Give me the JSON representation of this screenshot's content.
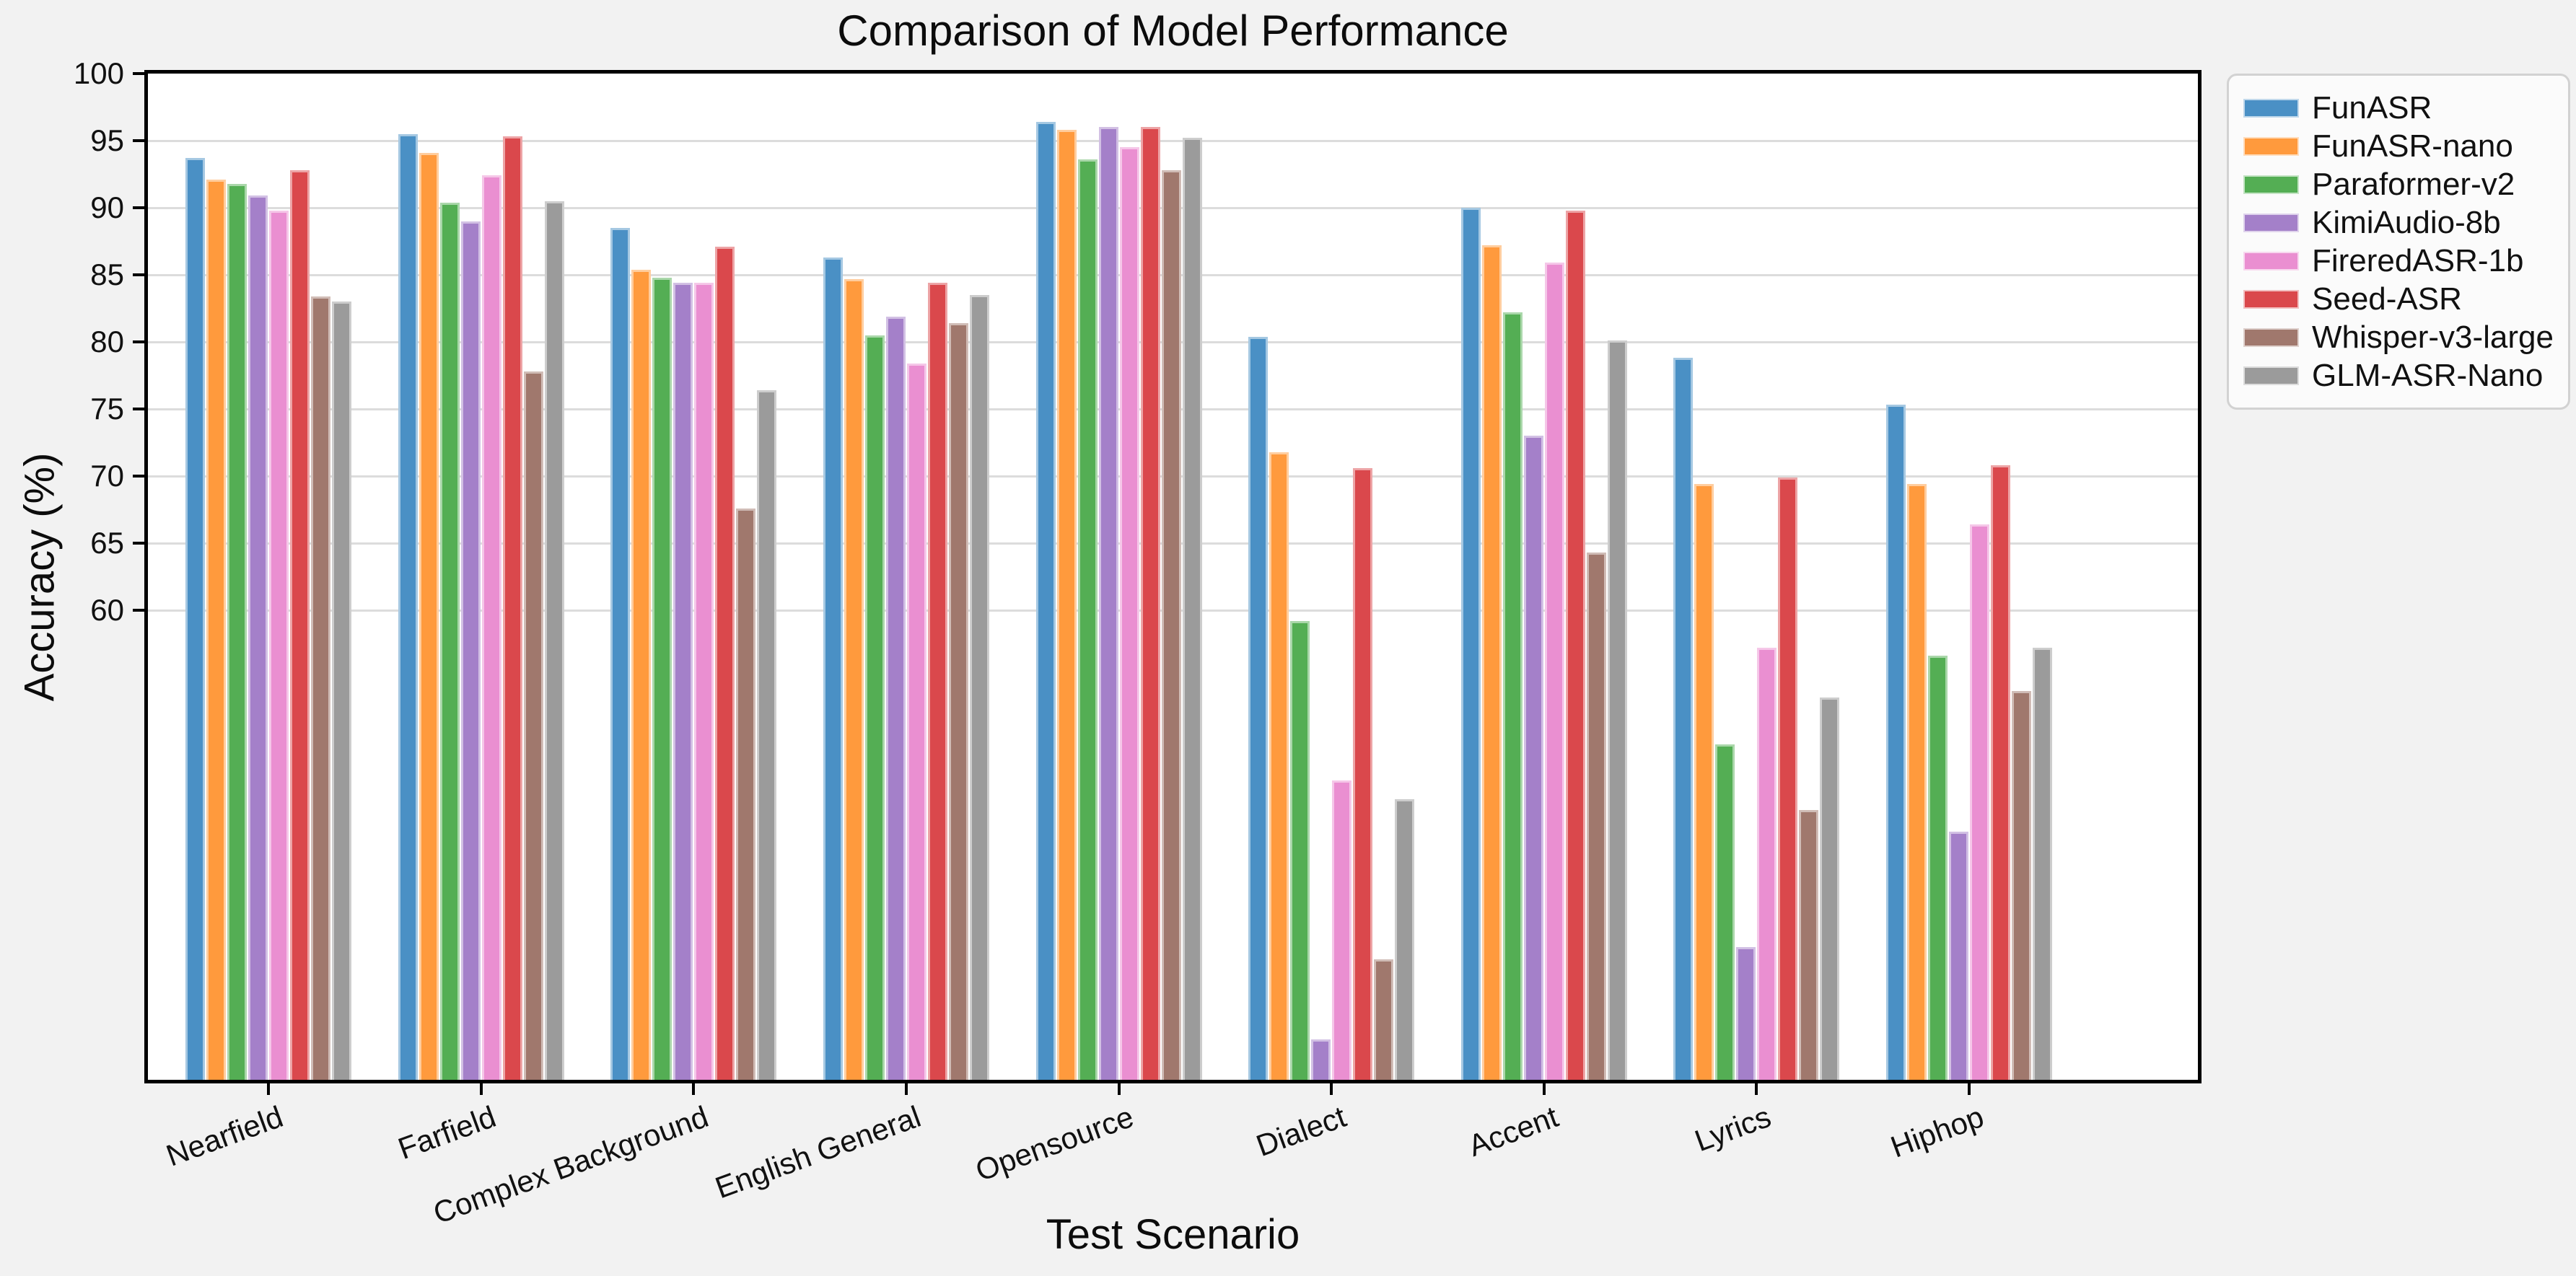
{
  "title": "Comparison of Model Performance",
  "chart_data": {
    "type": "bar",
    "title": "Comparison of Model Performance",
    "xlabel": "Test Scenario",
    "ylabel": "Accuracy (%)",
    "ylim": [
      25,
      100
    ],
    "yticks": [
      60,
      65,
      70,
      75,
      80,
      85,
      90,
      95,
      100
    ],
    "grid": "horizontal",
    "legend_position": "outside-top-right",
    "categories": [
      "Nearfield",
      "Farfield",
      "Complex Background",
      "English General",
      "Opensource",
      "Dialect",
      "Accent",
      "Lyrics",
      "Hiphop"
    ],
    "series": [
      {
        "name": "FunASR",
        "color": "#4a90c5",
        "values": [
          93.7,
          95.5,
          88.5,
          86.3,
          96.4,
          80.4,
          90.0,
          78.8,
          75.3
        ]
      },
      {
        "name": "FunASR-nano",
        "color": "#ff9a3d",
        "values": [
          92.1,
          94.1,
          85.4,
          84.7,
          95.8,
          71.8,
          87.2,
          69.4,
          69.4
        ]
      },
      {
        "name": "Paraformer-v2",
        "color": "#54ae54",
        "values": [
          91.8,
          90.4,
          84.8,
          80.5,
          93.6,
          59.2,
          82.2,
          50.0,
          56.6
        ]
      },
      {
        "name": "KimiAudio-8b",
        "color": "#a480c9",
        "values": [
          90.9,
          89.0,
          84.4,
          81.9,
          96.0,
          28.0,
          73.0,
          34.9,
          43.5
        ]
      },
      {
        "name": "FireredASR-1b",
        "color": "#ea8fd1",
        "values": [
          89.8,
          92.4,
          84.4,
          78.4,
          94.5,
          47.3,
          85.9,
          57.2,
          66.4
        ]
      },
      {
        "name": "Seed-ASR",
        "color": "#da484c",
        "values": [
          92.8,
          95.3,
          87.1,
          84.4,
          96.0,
          70.6,
          89.8,
          69.9,
          70.8
        ]
      },
      {
        "name": "Whisper-v3-large",
        "color": "#a0786d",
        "values": [
          83.4,
          77.8,
          67.6,
          81.4,
          92.8,
          34.0,
          64.3,
          45.1,
          54.0
        ]
      },
      {
        "name": "GLM-ASR-Nano",
        "color": "#9b9b9b",
        "values": [
          83.0,
          90.5,
          76.4,
          83.5,
          95.2,
          45.9,
          80.1,
          53.5,
          57.2
        ]
      }
    ]
  },
  "style_colors": {
    "figure_bg": "#f2f2f2",
    "plot_bg": "#ffffff",
    "gridline": "#dcdcdc",
    "spine": "#000000",
    "legend_bg": "#fbfbfb",
    "legend_border": "#d2d2d2"
  }
}
